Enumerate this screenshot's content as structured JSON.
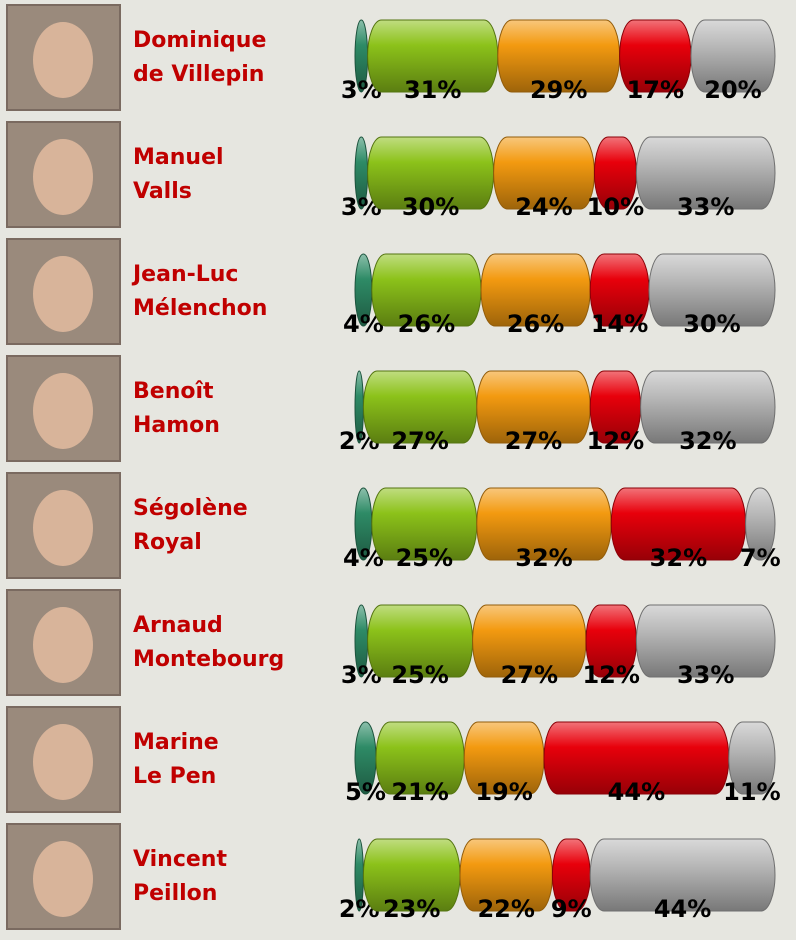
{
  "chart_data": {
    "type": "bar",
    "orientation": "horizontal",
    "stacked": true,
    "categories": [
      [
        "Dominique",
        "de Villepin"
      ],
      [
        "Manuel",
        "Valls"
      ],
      [
        "Jean-Luc",
        "Mélenchon"
      ],
      [
        "Benoît",
        "Hamon"
      ],
      [
        "Ségolène",
        " Royal"
      ],
      [
        "Arnaud",
        "Montebourg"
      ],
      [
        "Marine",
        " Le Pen"
      ],
      [
        "Vincent",
        "Peillon"
      ]
    ],
    "xlim": [
      0,
      100
    ],
    "series": [
      {
        "color": "#2e8b66",
        "values": [
          3,
          3,
          4,
          2,
          4,
          3,
          5,
          2
        ],
        "value_labels": [
          "3%",
          "3%",
          "4%",
          "2%",
          "4%",
          "3%",
          "5%",
          "2%"
        ]
      },
      {
        "color": "#8cc21a",
        "values": [
          31,
          30,
          26,
          27,
          25,
          25,
          21,
          23
        ],
        "value_labels": [
          "31%",
          "30%",
          "26%",
          "27%",
          "25%",
          "25%",
          "21%",
          "23%"
        ]
      },
      {
        "color": "#f39a10",
        "values": [
          29,
          24,
          26,
          27,
          32,
          27,
          19,
          22
        ],
        "value_labels": [
          "29%",
          "24%",
          "26%",
          "27%",
          "32%",
          "27%",
          "19%",
          "22%"
        ]
      },
      {
        "color": "#e8000b",
        "values": [
          17,
          10,
          14,
          12,
          32,
          12,
          44,
          9
        ],
        "value_labels": [
          "17%",
          "10%",
          "14%",
          "12%",
          "32%",
          "12%",
          "44%",
          "9%"
        ]
      },
      {
        "color": "#b9b9b9",
        "values": [
          20,
          33,
          30,
          32,
          7,
          33,
          11,
          44
        ],
        "value_labels": [
          "20%",
          "33%",
          "30%",
          "32%",
          "7%",
          "33%",
          "11%",
          "44%"
        ]
      }
    ]
  }
}
